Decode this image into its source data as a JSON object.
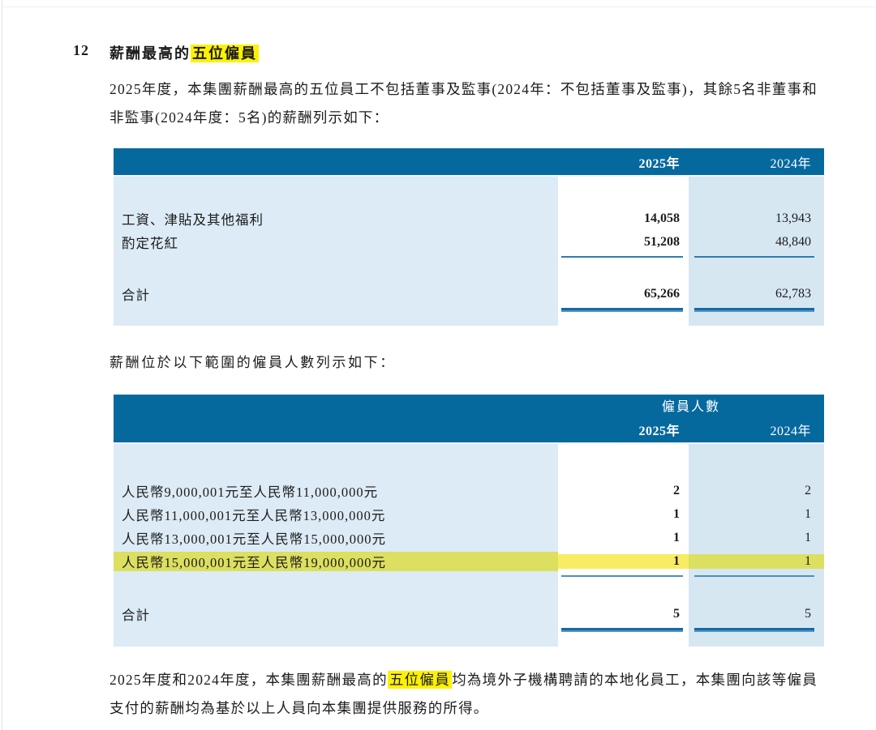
{
  "document": {
    "section_number": "12",
    "heading": {
      "prefix": "薪酬最高的",
      "highlighted": "五位僱員"
    },
    "intro_paragraph": "2025年度，本集團薪酬最高的五位員工不包括董事及監事(2024年：不包括董事及監事)，其餘5名非董事和非監事(2024年度：5名)的薪酬列示如下：",
    "mid_paragraph": "薪酬位於以下範圍的僱員人數列示如下：",
    "closing_paragraph": {
      "pre": "2025年度和2024年度，本集團薪酬最高的",
      "highlighted": "五位僱員",
      "post": "均為境外子機構聘請的本地化員工，本集團向該等僱員支付的薪酬均為基於以上人員向本集團提供服務的所得。"
    }
  },
  "remuneration_table": {
    "col_headers": [
      "2025年",
      "2024年"
    ],
    "rows": [
      {
        "label": "工資、津貼及其他福利",
        "y2025": "14,058",
        "y2024": "13,943"
      },
      {
        "label": "酌定花紅",
        "y2025": "51,208",
        "y2024": "48,840"
      }
    ],
    "total": {
      "label": "合計",
      "y2025": "65,266",
      "y2024": "62,783"
    }
  },
  "band_table": {
    "group_header": "僱員人數",
    "col_headers": [
      "2025年",
      "2024年"
    ],
    "rows": [
      {
        "label": "人民幣9,000,001元至人民幣11,000,000元",
        "y2025": "2",
        "y2024": "2",
        "highlighted": false
      },
      {
        "label": "人民幣11,000,001元至人民幣13,000,000元",
        "y2025": "1",
        "y2024": "1",
        "highlighted": false
      },
      {
        "label": "人民幣13,000,001元至人民幣15,000,000元",
        "y2025": "1",
        "y2024": "1",
        "highlighted": false
      },
      {
        "label": "人民幣15,000,001元至人民幣19,000,000元",
        "y2025": "1",
        "y2024": "1",
        "highlighted": true
      }
    ],
    "total": {
      "label": "合計",
      "y2025": "5",
      "y2024": "5"
    }
  },
  "colors": {
    "table_header_bg": "#06699e",
    "table_body_bg": "#dcebf6",
    "col_2025_bg": "#ffffff",
    "col_2024_bg": "#d6e7f2",
    "rule_line": "#176aa1",
    "text_highlight": "#fdf103",
    "row_highlight_on_white": "#f8ed62",
    "row_highlight_on_blue": "#dcdf5f"
  }
}
